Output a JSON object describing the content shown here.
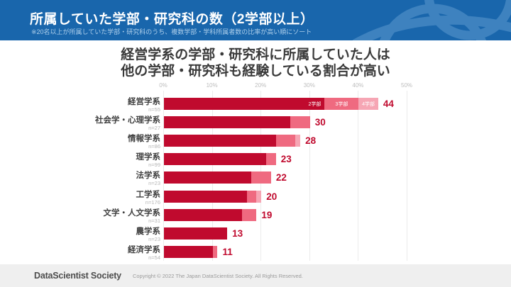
{
  "header": {
    "title": "所属していた学部・研究科の数（2学部以上）",
    "subtitle": "※20名以上が所属していた学部・研究科のうち、複数学部・学科所属者数の比率が高い順にソート",
    "bg_color": "#1966AC",
    "swirl_color": "#3E82BF",
    "logo_icon": "swirl-globe-logo-icon"
  },
  "main_title": {
    "line1": "経営学系の学部・研究科に所属していた人は",
    "line2": "他の学部・研究科も経験している割合が高い"
  },
  "chart_data": {
    "type": "bar",
    "orientation": "horizontal",
    "stacked": true,
    "title": "所属していた学部・研究科の数（2学部以上）",
    "xlabel": "",
    "ylabel": "",
    "xlim": [
      0,
      50
    ],
    "grid": true,
    "x_ticks": [
      "0%",
      "10%",
      "20%",
      "30%",
      "40%",
      "50%"
    ],
    "x_tick_values": [
      0,
      10,
      20,
      30,
      40,
      50
    ],
    "legend_position": "inline-first-bar",
    "series_names": [
      "2学部",
      "3学部",
      "4学部"
    ],
    "series_colors": [
      "#C00A2E",
      "#EF6A80",
      "#F6A6B4"
    ],
    "value_label_color": "#C00A2E",
    "categories": [
      {
        "label": "経営学系",
        "n": "n=55",
        "values": [
          33,
          7,
          4
        ],
        "total": 44
      },
      {
        "label": "社会学・心理学系",
        "n": "n=27",
        "values": [
          26,
          4,
          0
        ],
        "total": 30
      },
      {
        "label": "情報学系",
        "n": "n=86",
        "values": [
          23,
          4,
          1
        ],
        "total": 28
      },
      {
        "label": "理学系",
        "n": "n=99",
        "values": [
          21,
          2,
          0
        ],
        "total": 23
      },
      {
        "label": "法学系",
        "n": "n=23",
        "values": [
          18,
          4,
          0
        ],
        "total": 22
      },
      {
        "label": "工学系",
        "n": "n=176",
        "values": [
          17,
          2,
          1
        ],
        "total": 20
      },
      {
        "label": "文学・人文学系",
        "n": "n=31",
        "values": [
          16,
          3,
          0
        ],
        "total": 19
      },
      {
        "label": "農学系",
        "n": "n=23",
        "values": [
          13,
          0,
          0
        ],
        "total": 13
      },
      {
        "label": "経済学系",
        "n": "n=54",
        "values": [
          10,
          1,
          0
        ],
        "total": 11
      }
    ]
  },
  "footer": {
    "brand": "DataScientist Society",
    "copyright": "Copyright © 2022  The Japan DataScientist Society. All Rights Reserved."
  }
}
